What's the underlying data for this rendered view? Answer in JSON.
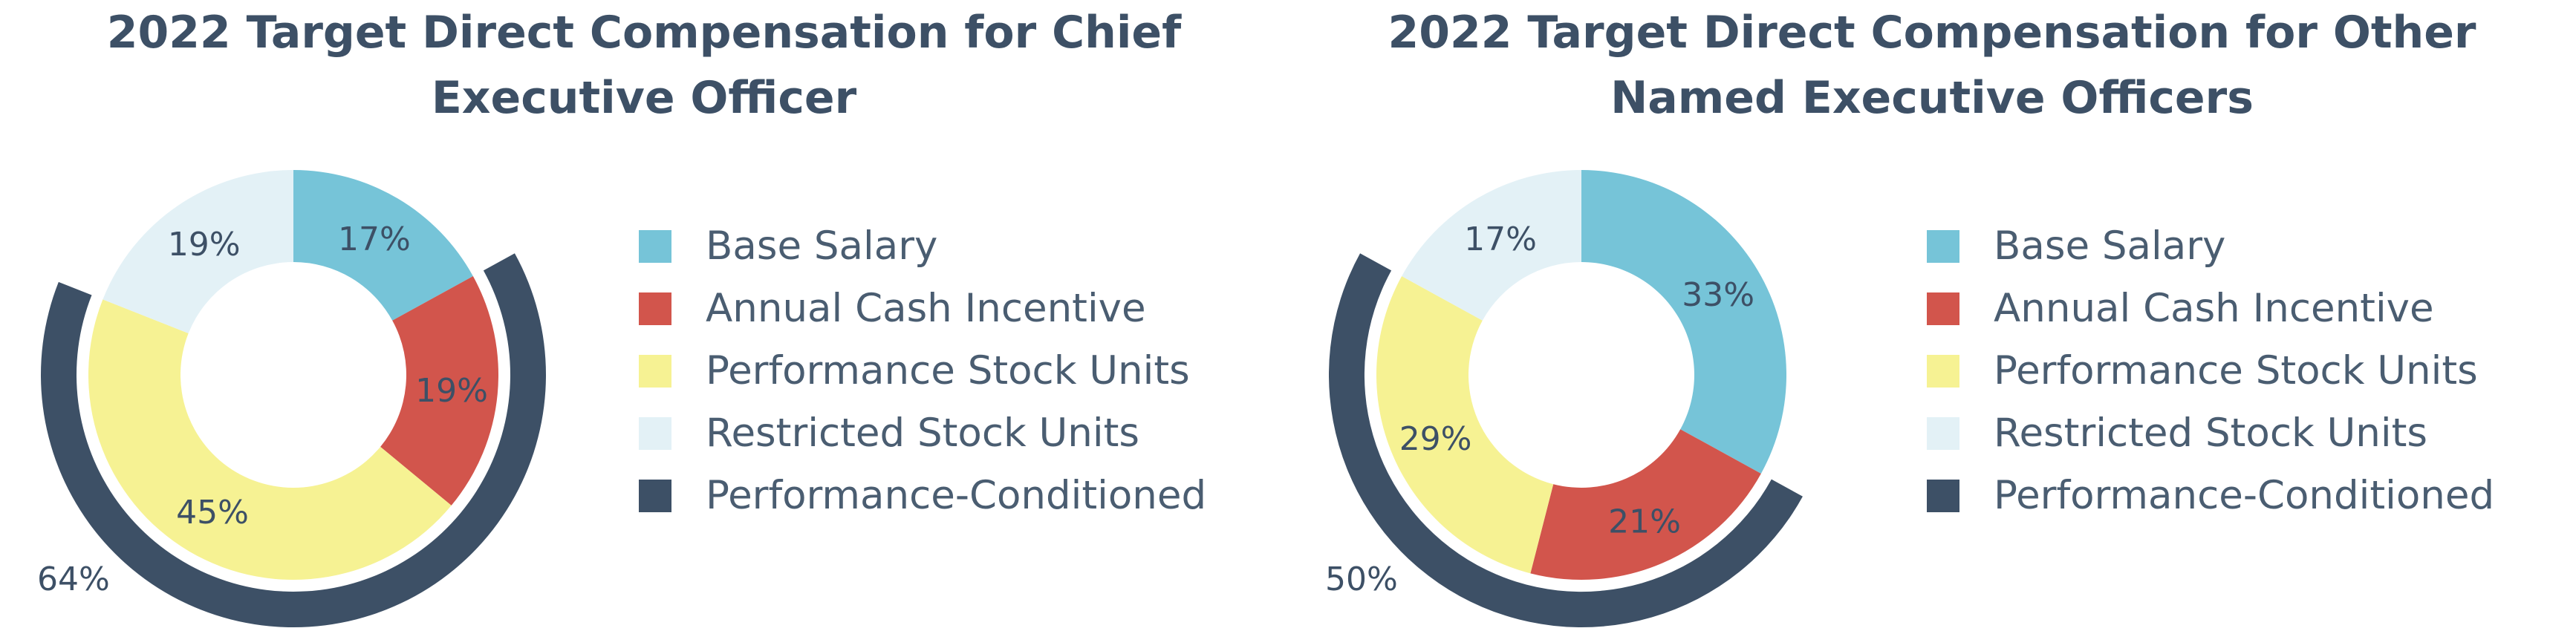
{
  "colors": {
    "base_salary": "#76c4d8",
    "annual_cash_incentive": "#d2554c",
    "performance_stock_units": "#f6f293",
    "restricted_stock_units": "#e3f1f6",
    "performance_conditioned": "#3d5066",
    "text": "#3d5066"
  },
  "chart_data": [
    {
      "type": "pie",
      "title": "2022 Target Direct Compensation for Chief Executive Officer",
      "title_lines": [
        "2022 Target Direct Compensation for Chief",
        "Executive Officer"
      ],
      "categories": [
        "Base Salary",
        "Annual Cash Incentive",
        "Performance Stock Units",
        "Restricted Stock Units"
      ],
      "values": [
        17,
        19,
        45,
        19
      ],
      "labels": [
        "17%",
        "19%",
        "45%",
        "19%"
      ],
      "outer_ring": {
        "name": "Performance-Conditioned",
        "value": 64,
        "label": "64%"
      },
      "legend": [
        "Base Salary",
        "Annual Cash Incentive",
        "Performance Stock Units",
        "Restricted Stock Units",
        "Performance-Conditioned"
      ],
      "legend_position": "right"
    },
    {
      "type": "pie",
      "title": "2022 Target Direct Compensation for Other Named Executive Officers",
      "title_lines": [
        "2022 Target Direct Compensation for Other",
        "Named Executive Officers"
      ],
      "categories": [
        "Base Salary",
        "Annual Cash Incentive",
        "Performance Stock Units",
        "Restricted Stock Units"
      ],
      "values": [
        33,
        21,
        29,
        17
      ],
      "labels": [
        "33%",
        "21%",
        "29%",
        "17%"
      ],
      "outer_ring": {
        "name": "Performance-Conditioned",
        "value": 50,
        "label": "50%"
      },
      "legend": [
        "Base Salary",
        "Annual Cash Incentive",
        "Performance Stock Units",
        "Restricted Stock Units",
        "Performance-Conditioned"
      ],
      "legend_position": "right"
    }
  ]
}
